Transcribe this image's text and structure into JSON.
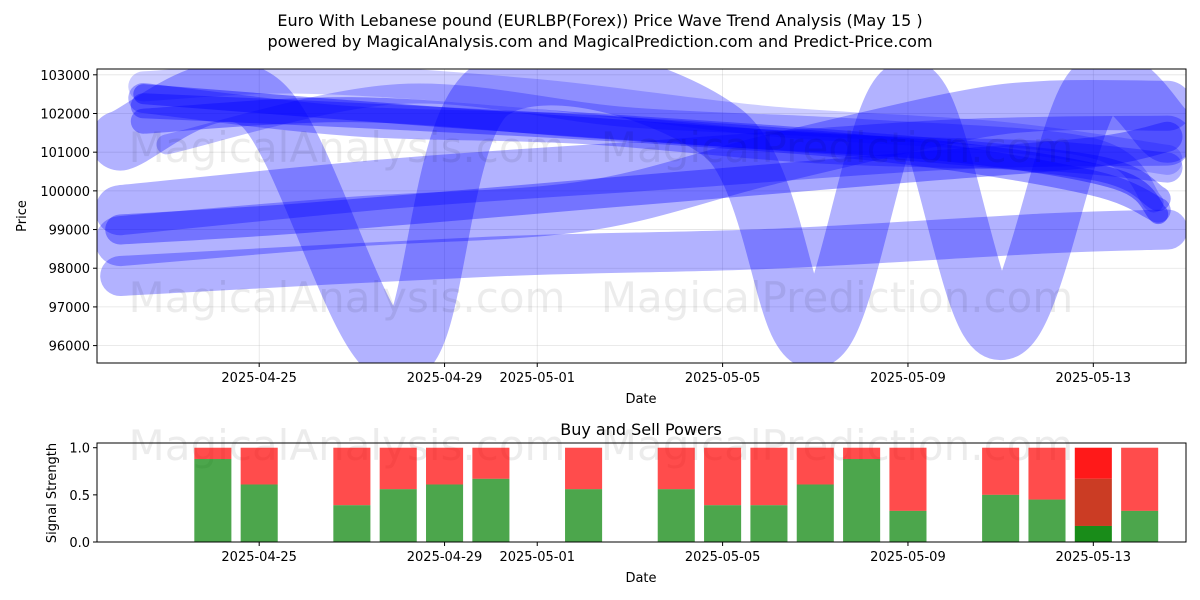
{
  "title_line1": "Euro With Lebanese pound (EURLBP(Forex)) Price Wave Trend Analysis (May 15 )",
  "title_line2": "powered by MagicalAnalysis.com and MagicalPrediction.com and Predict-Price.com",
  "watermarks": [
    "MagicalAnalysis.com",
    "MagicalPrediction.com"
  ],
  "colors": {
    "wave": "#0000ff",
    "buy": "#008000",
    "sell": "#ff0000",
    "grid": "#b0b0b0"
  },
  "chart_data": [
    {
      "type": "line",
      "name": "price-wave",
      "xlabel": "Date",
      "ylabel": "Price",
      "grid": true,
      "x_tick_labels": [
        "2025-04-25",
        "2025-04-29",
        "2025-05-01",
        "2025-05-05",
        "2025-05-09",
        "2025-05-13"
      ],
      "x_tick_days": [
        3,
        7,
        9,
        13,
        17,
        21
      ],
      "xlim_days": [
        -0.5,
        23
      ],
      "y_ticks": [
        96000,
        97000,
        98000,
        99000,
        100000,
        101000,
        102000,
        103000
      ],
      "y_tick_labels": [
        "96000",
        "97000",
        "98000",
        "99000",
        "100000",
        "101000",
        "102000",
        "103000"
      ],
      "ylim": [
        95550,
        103150
      ],
      "series": [
        {
          "name": "wave-1",
          "width": 60,
          "opacity": 0.3,
          "points": [
            [
              0,
              101300
            ],
            [
              3,
              102300
            ],
            [
              6,
              95800
            ],
            [
              8,
              102600
            ],
            [
              13,
              101500
            ],
            [
              15,
              96200
            ],
            [
              17,
              102600
            ],
            [
              19,
              96400
            ],
            [
              21,
              102600
            ],
            [
              22.6,
              101500
            ]
          ]
        },
        {
          "name": "wave-2",
          "width": 50,
          "opacity": 0.3,
          "points": [
            [
              0,
              98700
            ],
            [
              5,
              99200
            ],
            [
              10,
              99600
            ],
            [
              14,
              100800
            ],
            [
              18,
              101900
            ],
            [
              20,
              102200
            ],
            [
              22.6,
              102200
            ]
          ]
        },
        {
          "name": "wave-3",
          "width": 50,
          "opacity": 0.3,
          "points": [
            [
              0,
              99500
            ],
            [
              6,
              100200
            ],
            [
              12,
              100700
            ],
            [
              18,
              101200
            ],
            [
              22.6,
              101300
            ]
          ]
        },
        {
          "name": "wave-4",
          "width": 40,
          "opacity": 0.3,
          "points": [
            [
              0,
              97800
            ],
            [
              8,
              98300
            ],
            [
              14,
              98500
            ],
            [
              20,
              98900
            ],
            [
              22.6,
              99000
            ]
          ]
        },
        {
          "name": "wave-5",
          "width": 30,
          "opacity": 0.3,
          "points": [
            [
              0.5,
              102400
            ],
            [
              5,
              101800
            ],
            [
              10,
              101600
            ],
            [
              15,
              101100
            ],
            [
              20,
              100900
            ],
            [
              22.6,
              100600
            ]
          ]
        },
        {
          "name": "wave-6",
          "width": 25,
          "opacity": 0.35,
          "points": [
            [
              0.5,
              102200
            ],
            [
              6,
              101900
            ],
            [
              12,
              101500
            ],
            [
              17,
              101000
            ],
            [
              21,
              100200
            ],
            [
              22.4,
              99500
            ]
          ]
        },
        {
          "name": "wave-7",
          "width": 25,
          "opacity": 0.35,
          "points": [
            [
              0.5,
              101800
            ],
            [
              5,
              102100
            ],
            [
              10,
              101700
            ],
            [
              16,
              101200
            ],
            [
              21,
              100600
            ],
            [
              22.4,
              99800
            ]
          ]
        },
        {
          "name": "wave-8",
          "width": 20,
          "opacity": 0.4,
          "points": [
            [
              0.5,
              102500
            ],
            [
              7,
              101900
            ],
            [
              13,
              101400
            ],
            [
              18,
              101000
            ],
            [
              21.5,
              100300
            ],
            [
              22.4,
              99400
            ]
          ]
        },
        {
          "name": "wave-9",
          "width": 30,
          "opacity": 0.2,
          "points": [
            [
              0.5,
              102700
            ],
            [
              4,
              102900
            ],
            [
              9,
              102500
            ],
            [
              14,
              101800
            ],
            [
              19,
              101400
            ],
            [
              22.6,
              100800
            ]
          ]
        },
        {
          "name": "wave-10",
          "width": 20,
          "opacity": 0.25,
          "points": [
            [
              1,
              101200
            ],
            [
              6,
              102500
            ],
            [
              11,
              101900
            ],
            [
              16,
              101600
            ],
            [
              21,
              101100
            ],
            [
              22.3,
              99700
            ]
          ]
        },
        {
          "name": "wave-11",
          "width": 30,
          "opacity": 0.35,
          "points": [
            [
              0,
              99000
            ],
            [
              4,
              99300
            ],
            [
              10,
              99900
            ],
            [
              13,
              100200
            ],
            [
              17,
              100600
            ],
            [
              21,
              101000
            ],
            [
              22.6,
              101400
            ]
          ]
        }
      ]
    },
    {
      "type": "bar",
      "name": "buy-sell-powers",
      "title": "Buy and Sell Powers",
      "xlabel": "Date",
      "ylabel": "Signal Strength",
      "x_tick_labels": [
        "2025-04-25",
        "2025-04-29",
        "2025-05-01",
        "2025-05-05",
        "2025-05-09",
        "2025-05-13"
      ],
      "x_tick_days": [
        3,
        7,
        9,
        13,
        17,
        21
      ],
      "xlim_days": [
        -0.5,
        23
      ],
      "y_ticks": [
        0.0,
        0.5,
        1.0
      ],
      "y_tick_labels": [
        "0.0",
        "0.5",
        "1.0"
      ],
      "ylim": [
        0,
        1.05
      ],
      "bars": [
        {
          "day": 2,
          "buy": 0.88
        },
        {
          "day": 3,
          "buy": 0.61
        },
        {
          "day": 5,
          "buy": 0.39
        },
        {
          "day": 6,
          "buy": 0.56
        },
        {
          "day": 7,
          "buy": 0.61
        },
        {
          "day": 8,
          "buy": 0.67
        },
        {
          "day": 10,
          "buy": 0.56
        },
        {
          "day": 12,
          "buy": 0.56
        },
        {
          "day": 13,
          "buy": 0.39
        },
        {
          "day": 14,
          "buy": 0.39
        },
        {
          "day": 15,
          "buy": 0.61
        },
        {
          "day": 16,
          "buy": 0.88
        },
        {
          "day": 17,
          "buy": 0.33
        },
        {
          "day": 19,
          "buy": 0.5
        },
        {
          "day": 20,
          "buy": 0.45
        },
        {
          "day": 21,
          "buy": 0.17,
          "mid": 0.67,
          "highlight": true
        },
        {
          "day": 22,
          "buy": 0.33
        }
      ]
    }
  ]
}
